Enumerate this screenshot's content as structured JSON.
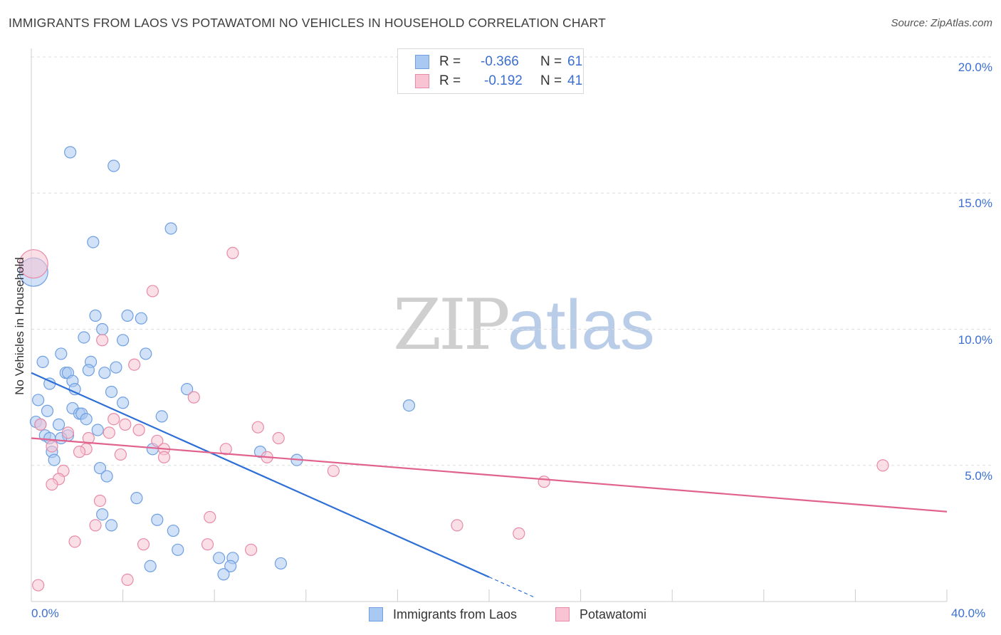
{
  "header": {
    "title": "IMMIGRANTS FROM LAOS VS POTAWATOMI NO VEHICLES IN HOUSEHOLD CORRELATION CHART",
    "source": "Source: ZipAtlas.com"
  },
  "watermark": {
    "zip": "ZIP",
    "atlas": "atlas"
  },
  "legend": {
    "rows": [
      {
        "r_label": "R = ",
        "r_value": "-0.366",
        "n_label": "N = ",
        "n_value": "61",
        "color": "#a9c8f2",
        "border": "#6f9fe0"
      },
      {
        "r_label": "R = ",
        "r_value": "-0.192",
        "n_label": "N = ",
        "n_value": "41",
        "color": "#f8c4d4",
        "border": "#e88aa8"
      }
    ]
  },
  "bottom_legend": {
    "items": [
      {
        "label": "Immigrants from Laos",
        "color": "#a9c8f2",
        "border": "#6f9fe0"
      },
      {
        "label": "Potawatomi",
        "color": "#f8c4d4",
        "border": "#e88aa8"
      }
    ]
  },
  "chart_data": {
    "type": "scatter",
    "title": "IMMIGRANTS FROM LAOS VS POTAWATOMI NO VEHICLES IN HOUSEHOLD CORRELATION CHART",
    "xlabel": "",
    "ylabel": "No Vehicles in Household",
    "xlim": [
      0,
      40
    ],
    "ylim": [
      0,
      20
    ],
    "x_tick_labels": [
      "0.0%",
      "40.0%"
    ],
    "y_ticks": [
      5,
      10,
      15,
      20
    ],
    "y_tick_labels": [
      "5.0%",
      "10.0%",
      "15.0%",
      "20.0%"
    ],
    "grid": true,
    "legend_position": "top-center",
    "series": [
      {
        "name": "Immigrants from Laos",
        "color": "#a9c8f2",
        "stroke": "#6f9fe0",
        "line_color": "#2d6fd6",
        "trend": {
          "x0": 0.0,
          "y0": 8.4,
          "x1": 20.0,
          "y1": 0.9,
          "dash_to_x": 22.0
        },
        "points": [
          [
            1.7,
            16.5
          ],
          [
            3.6,
            16.0
          ],
          [
            6.1,
            13.7
          ],
          [
            2.7,
            13.2
          ],
          [
            0.1,
            12.1
          ],
          [
            2.8,
            10.5
          ],
          [
            4.2,
            10.5
          ],
          [
            4.8,
            10.4
          ],
          [
            3.1,
            10.0
          ],
          [
            2.3,
            9.7
          ],
          [
            4.0,
            9.6
          ],
          [
            5.0,
            9.1
          ],
          [
            1.3,
            9.1
          ],
          [
            0.5,
            8.8
          ],
          [
            2.6,
            8.8
          ],
          [
            3.7,
            8.6
          ],
          [
            2.5,
            8.5
          ],
          [
            1.5,
            8.4
          ],
          [
            1.6,
            8.4
          ],
          [
            3.2,
            8.4
          ],
          [
            1.8,
            8.1
          ],
          [
            0.8,
            8.0
          ],
          [
            1.9,
            7.8
          ],
          [
            3.5,
            7.7
          ],
          [
            6.8,
            7.8
          ],
          [
            0.3,
            7.4
          ],
          [
            4.0,
            7.3
          ],
          [
            1.8,
            7.1
          ],
          [
            16.5,
            7.2
          ],
          [
            0.7,
            7.0
          ],
          [
            2.1,
            6.9
          ],
          [
            2.2,
            6.9
          ],
          [
            5.7,
            6.8
          ],
          [
            2.4,
            6.7
          ],
          [
            0.2,
            6.6
          ],
          [
            0.4,
            6.5
          ],
          [
            1.2,
            6.5
          ],
          [
            2.9,
            6.3
          ],
          [
            0.6,
            6.1
          ],
          [
            1.6,
            6.1
          ],
          [
            0.8,
            6.0
          ],
          [
            1.3,
            6.0
          ],
          [
            0.9,
            5.5
          ],
          [
            5.3,
            5.6
          ],
          [
            10.0,
            5.5
          ],
          [
            1.0,
            5.2
          ],
          [
            11.6,
            5.2
          ],
          [
            3.0,
            4.9
          ],
          [
            3.3,
            4.6
          ],
          [
            4.6,
            3.8
          ],
          [
            3.1,
            3.2
          ],
          [
            5.5,
            3.0
          ],
          [
            3.5,
            2.8
          ],
          [
            6.2,
            2.6
          ],
          [
            6.4,
            1.9
          ],
          [
            8.2,
            1.6
          ],
          [
            8.8,
            1.6
          ],
          [
            10.9,
            1.4
          ],
          [
            5.2,
            1.3
          ],
          [
            8.7,
            1.3
          ],
          [
            8.4,
            1.0
          ]
        ]
      },
      {
        "name": "Potawatomi",
        "color": "#f8c4d4",
        "stroke": "#e88aa8",
        "line_color": "#e0628d",
        "trend": {
          "x0": 0.0,
          "y0": 6.0,
          "x1": 40.0,
          "y1": 3.3
        },
        "points": [
          [
            0.1,
            12.4
          ],
          [
            8.8,
            12.8
          ],
          [
            5.3,
            11.4
          ],
          [
            3.1,
            9.6
          ],
          [
            4.5,
            8.7
          ],
          [
            7.1,
            7.5
          ],
          [
            3.6,
            6.7
          ],
          [
            4.1,
            6.5
          ],
          [
            9.9,
            6.4
          ],
          [
            4.7,
            6.3
          ],
          [
            3.4,
            6.2
          ],
          [
            1.6,
            6.2
          ],
          [
            10.8,
            6.0
          ],
          [
            2.5,
            6.0
          ],
          [
            5.5,
            5.9
          ],
          [
            0.4,
            6.5
          ],
          [
            0.9,
            5.7
          ],
          [
            2.4,
            5.6
          ],
          [
            5.8,
            5.6
          ],
          [
            8.5,
            5.6
          ],
          [
            2.1,
            5.5
          ],
          [
            3.9,
            5.4
          ],
          [
            5.8,
            5.3
          ],
          [
            10.3,
            5.3
          ],
          [
            13.2,
            4.8
          ],
          [
            1.4,
            4.8
          ],
          [
            1.2,
            4.5
          ],
          [
            0.9,
            4.3
          ],
          [
            22.4,
            4.4
          ],
          [
            37.2,
            5.0
          ],
          [
            3.0,
            3.7
          ],
          [
            7.8,
            3.1
          ],
          [
            2.8,
            2.8
          ],
          [
            18.6,
            2.8
          ],
          [
            21.3,
            2.5
          ],
          [
            1.9,
            2.2
          ],
          [
            4.9,
            2.1
          ],
          [
            7.7,
            2.1
          ],
          [
            9.6,
            1.9
          ],
          [
            4.2,
            0.8
          ],
          [
            0.3,
            0.6
          ]
        ]
      }
    ]
  }
}
